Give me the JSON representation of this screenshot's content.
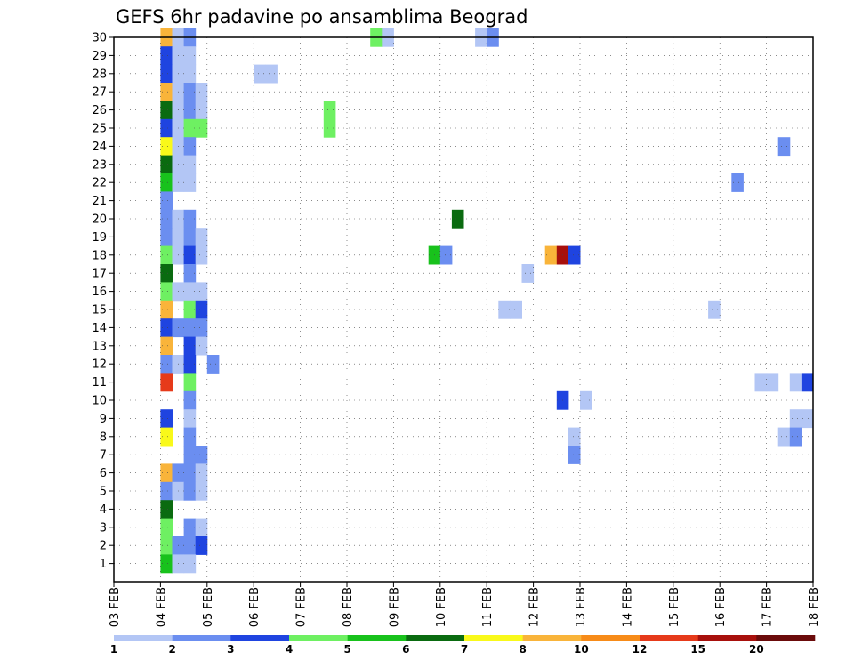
{
  "chart_data": {
    "type": "heatmap",
    "title": "GEFS 6hr padavine po ansamblima Beograd",
    "xlabel": "",
    "ylabel": "",
    "x_tick_labels": [
      "03 FEB",
      "04 FEB",
      "05 FEB",
      "06 FEB",
      "07 FEB",
      "08 FEB",
      "09 FEB",
      "10 FEB",
      "11 FEB",
      "12 FEB",
      "13 FEB",
      "14 FEB",
      "15 FEB",
      "16 FEB",
      "17 FEB",
      "18 FEB"
    ],
    "y_tick_labels": [
      "1",
      "2",
      "3",
      "4",
      "5",
      "6",
      "7",
      "8",
      "9",
      "10",
      "11",
      "12",
      "13",
      "14",
      "15",
      "16",
      "17",
      "18",
      "19",
      "20",
      "21",
      "22",
      "23",
      "24",
      "25",
      "26",
      "27",
      "28",
      "29",
      "30"
    ],
    "xlim_days": [
      3,
      18
    ],
    "ylim": [
      0,
      30
    ],
    "grid": true,
    "legend": {
      "placement": "bottom",
      "colors": [
        "#b3c6f5",
        "#6b8ef0",
        "#1f44e0",
        "#6ef062",
        "#18c21c",
        "#0a6b10",
        "#f9f91a",
        "#f9b43a",
        "#f78b18",
        "#e63a1a",
        "#a8100c",
        "#6b0b0b"
      ],
      "labels": [
        "1",
        "2",
        "3",
        "4",
        "5",
        "6",
        "7",
        "8",
        "10",
        "12",
        "15",
        "20"
      ]
    },
    "cells": [
      {
        "ens": 30,
        "t": [
          4.0
        ],
        "v": "orange"
      },
      {
        "ens": 30,
        "t": [
          4.25
        ],
        "v": "lb"
      },
      {
        "ens": 30,
        "t": [
          4.5
        ],
        "v": "mb"
      },
      {
        "ens": 30,
        "t": [
          8.5
        ],
        "v": "lgr"
      },
      {
        "ens": 30,
        "t": [
          8.75
        ],
        "v": "lb"
      },
      {
        "ens": 30,
        "t": [
          10.75
        ],
        "v": "lb"
      },
      {
        "ens": 30,
        "t": [
          11.0
        ],
        "v": "mb"
      },
      {
        "ens": 29,
        "t": [
          4.0
        ],
        "v": "db"
      },
      {
        "ens": 29,
        "t": [
          4.25
        ],
        "v": "lb"
      },
      {
        "ens": 29,
        "t": [
          4.5
        ],
        "v": "lb"
      },
      {
        "ens": 28,
        "t": [
          4.0
        ],
        "v": "db"
      },
      {
        "ens": 28,
        "t": [
          4.25
        ],
        "v": "lb"
      },
      {
        "ens": 28,
        "t": [
          4.5
        ],
        "v": "lb"
      },
      {
        "ens": 28,
        "t": [
          6.0
        ],
        "v": "lb"
      },
      {
        "ens": 28,
        "t": [
          6.25
        ],
        "v": "lb"
      },
      {
        "ens": 27,
        "t": [
          4.0
        ],
        "v": "orange"
      },
      {
        "ens": 27,
        "t": [
          4.25
        ],
        "v": "lb"
      },
      {
        "ens": 27,
        "t": [
          4.5
        ],
        "v": "mb"
      },
      {
        "ens": 27,
        "t": [
          4.75
        ],
        "v": "lb"
      },
      {
        "ens": 26,
        "t": [
          4.0
        ],
        "v": "dg"
      },
      {
        "ens": 26,
        "t": [
          4.25
        ],
        "v": "lb"
      },
      {
        "ens": 26,
        "t": [
          4.5
        ],
        "v": "mb"
      },
      {
        "ens": 26,
        "t": [
          4.75
        ],
        "v": "lb"
      },
      {
        "ens": 26,
        "t": [
          7.5
        ],
        "v": "lgr"
      },
      {
        "ens": 25,
        "t": [
          4.0
        ],
        "v": "db"
      },
      {
        "ens": 25,
        "t": [
          4.25
        ],
        "v": "lb"
      },
      {
        "ens": 25,
        "t": [
          4.5
        ],
        "v": "lgr"
      },
      {
        "ens": 25,
        "t": [
          4.75
        ],
        "v": "lgr"
      },
      {
        "ens": 25,
        "t": [
          7.5
        ],
        "v": "lgr"
      },
      {
        "ens": 24,
        "t": [
          4.0
        ],
        "v": "yellow"
      },
      {
        "ens": 24,
        "t": [
          4.25
        ],
        "v": "lb"
      },
      {
        "ens": 24,
        "t": [
          4.5
        ],
        "v": "mb"
      },
      {
        "ens": 24,
        "t": [
          17.25
        ],
        "v": "mb"
      },
      {
        "ens": 23,
        "t": [
          4.0
        ],
        "v": "dg"
      },
      {
        "ens": 23,
        "t": [
          4.25
        ],
        "v": "lb"
      },
      {
        "ens": 23,
        "t": [
          4.5
        ],
        "v": "lb"
      },
      {
        "ens": 22,
        "t": [
          4.0
        ],
        "v": "green"
      },
      {
        "ens": 22,
        "t": [
          4.25
        ],
        "v": "lb"
      },
      {
        "ens": 22,
        "t": [
          4.5
        ],
        "v": "lb"
      },
      {
        "ens": 22,
        "t": [
          16.25
        ],
        "v": "mb"
      },
      {
        "ens": 21,
        "t": [
          4.0
        ],
        "v": "mb"
      },
      {
        "ens": 20,
        "t": [
          4.0
        ],
        "v": "mb"
      },
      {
        "ens": 20,
        "t": [
          4.25
        ],
        "v": "lb"
      },
      {
        "ens": 20,
        "t": [
          4.5
        ],
        "v": "mb"
      },
      {
        "ens": 20,
        "t": [
          10.25
        ],
        "v": "dg"
      },
      {
        "ens": 19,
        "t": [
          4.0
        ],
        "v": "mb"
      },
      {
        "ens": 19,
        "t": [
          4.25
        ],
        "v": "lb"
      },
      {
        "ens": 19,
        "t": [
          4.5
        ],
        "v": "mb"
      },
      {
        "ens": 19,
        "t": [
          4.75
        ],
        "v": "lb"
      },
      {
        "ens": 18,
        "t": [
          4.0
        ],
        "v": "lgr"
      },
      {
        "ens": 18,
        "t": [
          4.25
        ],
        "v": "lb"
      },
      {
        "ens": 18,
        "t": [
          4.5
        ],
        "v": "db"
      },
      {
        "ens": 18,
        "t": [
          4.75
        ],
        "v": "lb"
      },
      {
        "ens": 18,
        "t": [
          9.75
        ],
        "v": "green"
      },
      {
        "ens": 18,
        "t": [
          10.0
        ],
        "v": "mb"
      },
      {
        "ens": 18,
        "t": [
          12.25
        ],
        "v": "orange"
      },
      {
        "ens": 18,
        "t": [
          12.5
        ],
        "v": "darkred"
      },
      {
        "ens": 18,
        "t": [
          12.75
        ],
        "v": "db"
      },
      {
        "ens": 17,
        "t": [
          4.0
        ],
        "v": "dg"
      },
      {
        "ens": 17,
        "t": [
          4.5
        ],
        "v": "mb"
      },
      {
        "ens": 17,
        "t": [
          11.75
        ],
        "v": "lb"
      },
      {
        "ens": 16,
        "t": [
          4.0
        ],
        "v": "lgr"
      },
      {
        "ens": 16,
        "t": [
          4.25
        ],
        "v": "lb"
      },
      {
        "ens": 16,
        "t": [
          4.5
        ],
        "v": "lb"
      },
      {
        "ens": 16,
        "t": [
          4.75
        ],
        "v": "lb"
      },
      {
        "ens": 15,
        "t": [
          4.0
        ],
        "v": "orange"
      },
      {
        "ens": 15,
        "t": [
          4.5
        ],
        "v": "lgr"
      },
      {
        "ens": 15,
        "t": [
          4.75
        ],
        "v": "db"
      },
      {
        "ens": 15,
        "t": [
          11.25
        ],
        "v": "lb"
      },
      {
        "ens": 15,
        "t": [
          11.5
        ],
        "v": "lb"
      },
      {
        "ens": 15,
        "t": [
          15.75
        ],
        "v": "lb"
      },
      {
        "ens": 14,
        "t": [
          4.0
        ],
        "v": "db"
      },
      {
        "ens": 14,
        "t": [
          4.25
        ],
        "v": "mb"
      },
      {
        "ens": 14,
        "t": [
          4.5
        ],
        "v": "mb"
      },
      {
        "ens": 14,
        "t": [
          4.75
        ],
        "v": "mb"
      },
      {
        "ens": 13,
        "t": [
          4.0
        ],
        "v": "orange"
      },
      {
        "ens": 13,
        "t": [
          4.5
        ],
        "v": "db"
      },
      {
        "ens": 13,
        "t": [
          4.75
        ],
        "v": "lb"
      },
      {
        "ens": 12,
        "t": [
          4.0
        ],
        "v": "mb"
      },
      {
        "ens": 12,
        "t": [
          4.25
        ],
        "v": "lb"
      },
      {
        "ens": 12,
        "t": [
          4.5
        ],
        "v": "db"
      },
      {
        "ens": 12,
        "t": [
          5.0
        ],
        "v": "mb"
      },
      {
        "ens": 11,
        "t": [
          4.0
        ],
        "v": "red"
      },
      {
        "ens": 11,
        "t": [
          4.5
        ],
        "v": "lgr"
      },
      {
        "ens": 11,
        "t": [
          16.75
        ],
        "v": "lb"
      },
      {
        "ens": 11,
        "t": [
          17.0
        ],
        "v": "lb"
      },
      {
        "ens": 11,
        "t": [
          17.5
        ],
        "v": "lb"
      },
      {
        "ens": 11,
        "t": [
          17.75
        ],
        "v": "db"
      },
      {
        "ens": 10,
        "t": [
          4.5
        ],
        "v": "mb"
      },
      {
        "ens": 10,
        "t": [
          12.5
        ],
        "v": "db"
      },
      {
        "ens": 10,
        "t": [
          13.0
        ],
        "v": "lb"
      },
      {
        "ens": 9,
        "t": [
          4.0
        ],
        "v": "db"
      },
      {
        "ens": 9,
        "t": [
          4.5
        ],
        "v": "lb"
      },
      {
        "ens": 9,
        "t": [
          17.5
        ],
        "v": "lb"
      },
      {
        "ens": 9,
        "t": [
          17.75
        ],
        "v": "lb"
      },
      {
        "ens": 8,
        "t": [
          4.0
        ],
        "v": "yellow"
      },
      {
        "ens": 8,
        "t": [
          4.5
        ],
        "v": "mb"
      },
      {
        "ens": 8,
        "t": [
          12.75
        ],
        "v": "lb"
      },
      {
        "ens": 8,
        "t": [
          17.25
        ],
        "v": "lb"
      },
      {
        "ens": 8,
        "t": [
          17.5
        ],
        "v": "mb"
      },
      {
        "ens": 7,
        "t": [
          4.5
        ],
        "v": "mb"
      },
      {
        "ens": 7,
        "t": [
          4.75
        ],
        "v": "mb"
      },
      {
        "ens": 7,
        "t": [
          12.75
        ],
        "v": "mb"
      },
      {
        "ens": 6,
        "t": [
          4.0
        ],
        "v": "orange"
      },
      {
        "ens": 6,
        "t": [
          4.25
        ],
        "v": "mb"
      },
      {
        "ens": 6,
        "t": [
          4.5
        ],
        "v": "mb"
      },
      {
        "ens": 6,
        "t": [
          4.75
        ],
        "v": "lb"
      },
      {
        "ens": 5,
        "t": [
          4.0
        ],
        "v": "mb"
      },
      {
        "ens": 5,
        "t": [
          4.25
        ],
        "v": "lb"
      },
      {
        "ens": 5,
        "t": [
          4.5
        ],
        "v": "mb"
      },
      {
        "ens": 5,
        "t": [
          4.75
        ],
        "v": "lb"
      },
      {
        "ens": 4,
        "t": [
          4.0
        ],
        "v": "dg"
      },
      {
        "ens": 3,
        "t": [
          4.0
        ],
        "v": "lgr"
      },
      {
        "ens": 3,
        "t": [
          4.5
        ],
        "v": "mb"
      },
      {
        "ens": 3,
        "t": [
          4.75
        ],
        "v": "lb"
      },
      {
        "ens": 2,
        "t": [
          4.0
        ],
        "v": "lgr"
      },
      {
        "ens": 2,
        "t": [
          4.25
        ],
        "v": "mb"
      },
      {
        "ens": 2,
        "t": [
          4.5
        ],
        "v": "mb"
      },
      {
        "ens": 2,
        "t": [
          4.75
        ],
        "v": "db"
      },
      {
        "ens": 1,
        "t": [
          4.0
        ],
        "v": "green"
      },
      {
        "ens": 1,
        "t": [
          4.25
        ],
        "v": "lb"
      },
      {
        "ens": 1,
        "t": [
          4.5
        ],
        "v": "lb"
      }
    ],
    "value_colors": {
      "lb": "#b3c6f5",
      "mb": "#6b8ef0",
      "db": "#1f44e0",
      "lgr": "#6ef062",
      "green": "#18c21c",
      "dg": "#0a6b10",
      "yellow": "#f9f91a",
      "orange": "#f9b43a",
      "red": "#e63a1a",
      "darkred": "#a8100c"
    }
  }
}
